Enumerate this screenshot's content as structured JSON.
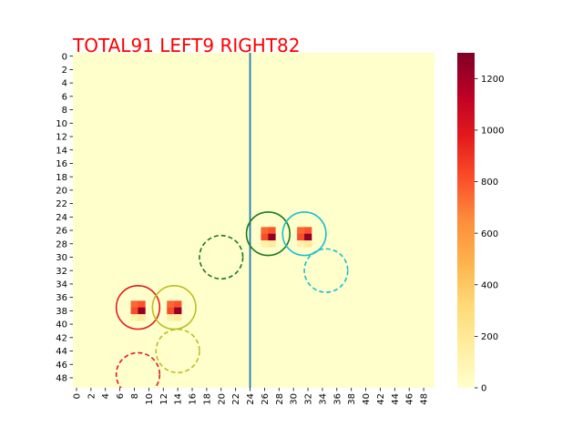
{
  "chart_data": {
    "type": "heatmap",
    "title": "TOTAL91  LEFT9 RIGHT82",
    "grid_rows": 50,
    "grid_cols": 50,
    "x_tick_labels": [
      "0",
      "2",
      "4",
      "6",
      "8",
      "10",
      "12",
      "14",
      "16",
      "18",
      "20",
      "22",
      "24",
      "26",
      "28",
      "30",
      "32",
      "34",
      "36",
      "38",
      "40",
      "42",
      "44",
      "46",
      "48"
    ],
    "y_tick_labels": [
      "0",
      "2",
      "4",
      "6",
      "8",
      "10",
      "12",
      "14",
      "16",
      "18",
      "20",
      "22",
      "24",
      "26",
      "28",
      "30",
      "32",
      "34",
      "36",
      "38",
      "40",
      "42",
      "44",
      "46",
      "48"
    ],
    "colorbar": {
      "colormap": "YlOrRd",
      "min": 0,
      "max": 1300,
      "tick_labels": [
        "0",
        "200",
        "400",
        "600",
        "800",
        "1000",
        "1200"
      ]
    },
    "divider_x": 24.5,
    "cells": [
      {
        "col": 8,
        "row": 37,
        "value": 750
      },
      {
        "col": 9,
        "row": 37,
        "value": 800
      },
      {
        "col": 8,
        "row": 38,
        "value": 820
      },
      {
        "col": 9,
        "row": 38,
        "value": 1250
      },
      {
        "col": 8,
        "row": 39,
        "value": 120
      },
      {
        "col": 9,
        "row": 39,
        "value": 180
      },
      {
        "col": 13,
        "row": 37,
        "value": 750
      },
      {
        "col": 14,
        "row": 37,
        "value": 800
      },
      {
        "col": 13,
        "row": 38,
        "value": 820
      },
      {
        "col": 14,
        "row": 38,
        "value": 1250
      },
      {
        "col": 13,
        "row": 39,
        "value": 120
      },
      {
        "col": 14,
        "row": 39,
        "value": 180
      },
      {
        "col": 26,
        "row": 26,
        "value": 750
      },
      {
        "col": 27,
        "row": 26,
        "value": 800
      },
      {
        "col": 26,
        "row": 27,
        "value": 820
      },
      {
        "col": 27,
        "row": 27,
        "value": 1250
      },
      {
        "col": 26,
        "row": 28,
        "value": 120
      },
      {
        "col": 27,
        "row": 28,
        "value": 180
      },
      {
        "col": 31,
        "row": 26,
        "value": 750
      },
      {
        "col": 32,
        "row": 26,
        "value": 800
      },
      {
        "col": 31,
        "row": 27,
        "value": 820
      },
      {
        "col": 32,
        "row": 27,
        "value": 1250
      },
      {
        "col": 31,
        "row": 28,
        "value": 120
      },
      {
        "col": 32,
        "row": 28,
        "value": 180
      }
    ],
    "circles": [
      {
        "name": "red-solid",
        "cx": 9.0,
        "cy": 38.0,
        "r": 3.0,
        "color": "#e31a1c",
        "dashed": false
      },
      {
        "name": "olive-solid",
        "cx": 14.0,
        "cy": 38.0,
        "r": 3.0,
        "color": "#bcbd22",
        "dashed": false
      },
      {
        "name": "green-solid",
        "cx": 27.0,
        "cy": 27.0,
        "r": 3.0,
        "color": "#1a7a1a",
        "dashed": false
      },
      {
        "name": "cyan-solid",
        "cx": 32.0,
        "cy": 27.0,
        "r": 3.0,
        "color": "#17becf",
        "dashed": false
      },
      {
        "name": "red-dashed",
        "cx": 9.0,
        "cy": 48.0,
        "r": 3.0,
        "color": "#e31a1c",
        "dashed": true
      },
      {
        "name": "olive-dashed",
        "cx": 14.5,
        "cy": 44.5,
        "r": 3.0,
        "color": "#bcbd22",
        "dashed": true
      },
      {
        "name": "green-dashed",
        "cx": 20.5,
        "cy": 30.5,
        "r": 3.0,
        "color": "#1a7a1a",
        "dashed": true
      },
      {
        "name": "cyan-dashed",
        "cx": 35.0,
        "cy": 32.5,
        "r": 3.0,
        "color": "#17becf",
        "dashed": true
      }
    ],
    "divider_color": "#1f77b4",
    "title_color": "#ff0000"
  }
}
